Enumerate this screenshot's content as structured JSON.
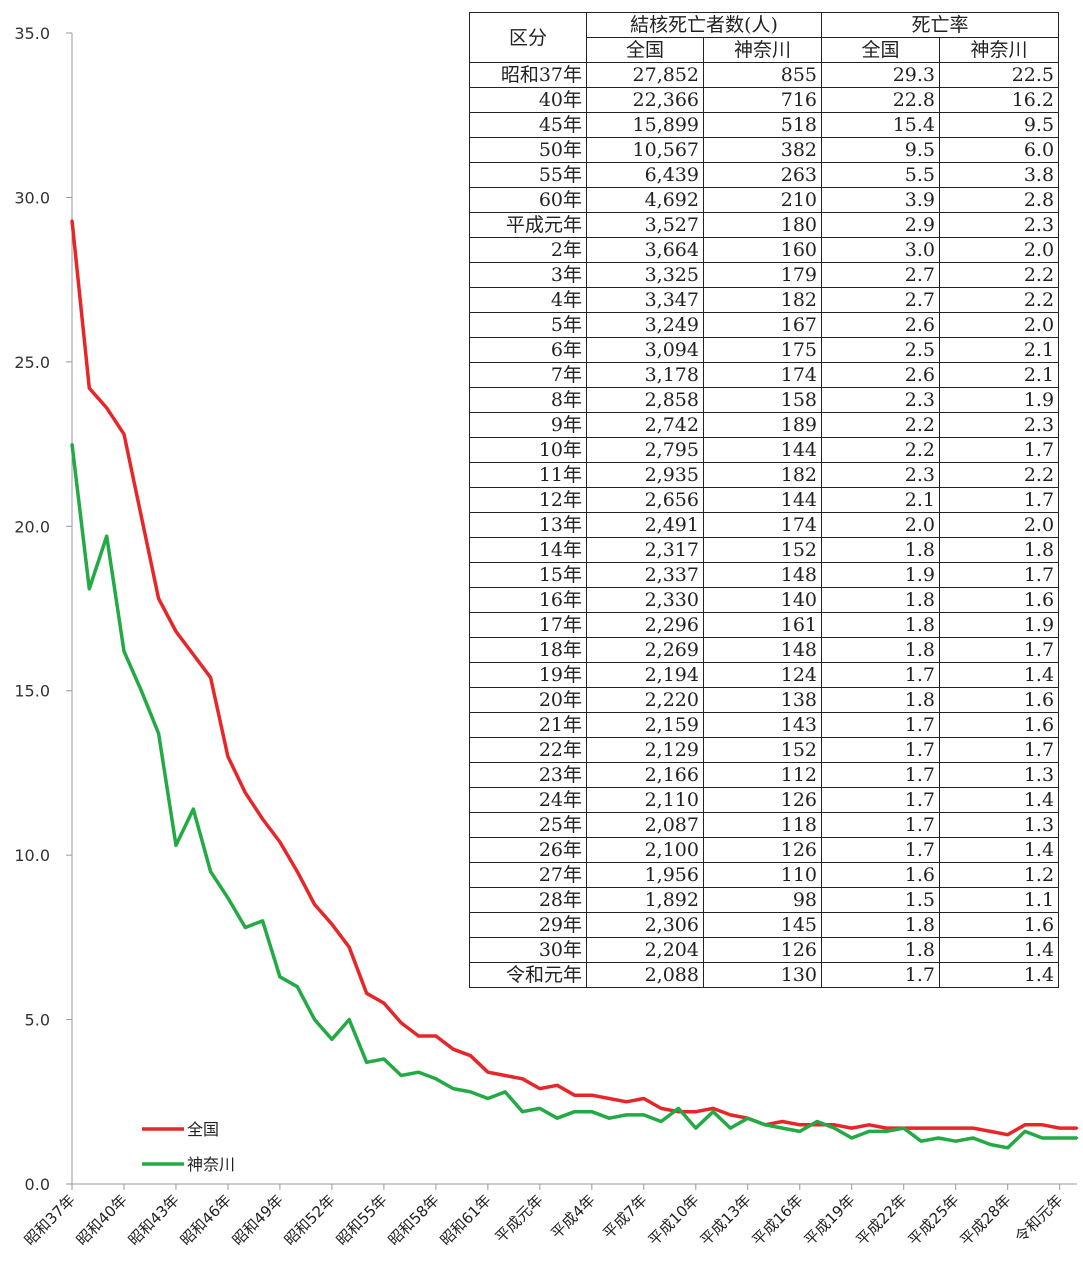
{
  "chart_data": {
    "type": "line",
    "ylim": [
      0,
      35
    ],
    "yticks": [
      "0.0",
      "5.0",
      "10.0",
      "15.0",
      "20.0",
      "25.0",
      "30.0",
      "35.0"
    ],
    "x_labels": [
      "昭和37年",
      "昭和40年",
      "昭和43年",
      "昭和46年",
      "昭和49年",
      "昭和52年",
      "昭和55年",
      "昭和58年",
      "昭和61年",
      "平成元年",
      "平成4年",
      "平成7年",
      "平成10年",
      "平成13年",
      "平成16年",
      "平成19年",
      "平成22年",
      "平成25年",
      "平成28年",
      "令和元年"
    ],
    "x_label_positions": [
      0,
      3,
      6,
      9,
      12,
      15,
      18,
      21,
      24,
      27,
      30,
      33,
      36,
      39,
      42,
      45,
      48,
      51,
      54,
      57
    ],
    "x_count": 59,
    "legend": "bottom-left",
    "series": [
      {
        "name": "全国",
        "color": "#e8262a",
        "values": [
          29.3,
          24.2,
          23.6,
          22.8,
          20.3,
          17.8,
          16.8,
          16.1,
          15.4,
          13.0,
          11.9,
          11.1,
          10.4,
          9.5,
          8.5,
          7.9,
          7.2,
          5.8,
          5.5,
          4.9,
          4.5,
          4.5,
          4.1,
          3.9,
          3.4,
          3.3,
          3.2,
          2.9,
          3.0,
          2.7,
          2.7,
          2.6,
          2.5,
          2.6,
          2.3,
          2.2,
          2.2,
          2.3,
          2.1,
          2.0,
          1.8,
          1.9,
          1.8,
          1.8,
          1.8,
          1.7,
          1.8,
          1.7,
          1.7,
          1.7,
          1.7,
          1.7,
          1.7,
          1.6,
          1.5,
          1.8,
          1.8,
          1.7,
          1.7
        ]
      },
      {
        "name": "神奈川",
        "color": "#22aa44",
        "values": [
          22.5,
          18.1,
          19.7,
          16.2,
          15.0,
          13.7,
          10.3,
          11.4,
          9.5,
          8.7,
          7.8,
          8.0,
          6.3,
          6.0,
          5.0,
          4.4,
          5.0,
          3.7,
          3.8,
          3.3,
          3.4,
          3.2,
          2.9,
          2.8,
          2.6,
          2.8,
          2.2,
          2.3,
          2.0,
          2.2,
          2.2,
          2.0,
          2.1,
          2.1,
          1.9,
          2.3,
          1.7,
          2.2,
          1.7,
          2.0,
          1.8,
          1.7,
          1.6,
          1.9,
          1.7,
          1.4,
          1.6,
          1.6,
          1.7,
          1.3,
          1.4,
          1.3,
          1.4,
          1.2,
          1.1,
          1.6,
          1.4,
          1.4,
          1.4
        ]
      }
    ]
  },
  "table": {
    "header_kubun": "区分",
    "header_deaths": "結核死亡者数(人)",
    "header_rate": "死亡率",
    "sub_headers": [
      "全国",
      "神奈川",
      "全国",
      "神奈川"
    ],
    "rows": [
      [
        "昭和37年",
        "27,852",
        "855",
        "29.3",
        "22.5"
      ],
      [
        "40年",
        "22,366",
        "716",
        "22.8",
        "16.2"
      ],
      [
        "45年",
        "15,899",
        "518",
        "15.4",
        "9.5"
      ],
      [
        "50年",
        "10,567",
        "382",
        "9.5",
        "6.0"
      ],
      [
        "55年",
        "6,439",
        "263",
        "5.5",
        "3.8"
      ],
      [
        "60年",
        "4,692",
        "210",
        "3.9",
        "2.8"
      ],
      [
        "平成元年",
        "3,527",
        "180",
        "2.9",
        "2.3"
      ],
      [
        "2年",
        "3,664",
        "160",
        "3.0",
        "2.0"
      ],
      [
        "3年",
        "3,325",
        "179",
        "2.7",
        "2.2"
      ],
      [
        "4年",
        "3,347",
        "182",
        "2.7",
        "2.2"
      ],
      [
        "5年",
        "3,249",
        "167",
        "2.6",
        "2.0"
      ],
      [
        "6年",
        "3,094",
        "175",
        "2.5",
        "2.1"
      ],
      [
        "7年",
        "3,178",
        "174",
        "2.6",
        "2.1"
      ],
      [
        "8年",
        "2,858",
        "158",
        "2.3",
        "1.9"
      ],
      [
        "9年",
        "2,742",
        "189",
        "2.2",
        "2.3"
      ],
      [
        "10年",
        "2,795",
        "144",
        "2.2",
        "1.7"
      ],
      [
        "11年",
        "2,935",
        "182",
        "2.3",
        "2.2"
      ],
      [
        "12年",
        "2,656",
        "144",
        "2.1",
        "1.7"
      ],
      [
        "13年",
        "2,491",
        "174",
        "2.0",
        "2.0"
      ],
      [
        "14年",
        "2,317",
        "152",
        "1.8",
        "1.8"
      ],
      [
        "15年",
        "2,337",
        "148",
        "1.9",
        "1.7"
      ],
      [
        "16年",
        "2,330",
        "140",
        "1.8",
        "1.6"
      ],
      [
        "17年",
        "2,296",
        "161",
        "1.8",
        "1.9"
      ],
      [
        "18年",
        "2,269",
        "148",
        "1.8",
        "1.7"
      ],
      [
        "19年",
        "2,194",
        "124",
        "1.7",
        "1.4"
      ],
      [
        "20年",
        "2,220",
        "138",
        "1.8",
        "1.6"
      ],
      [
        "21年",
        "2,159",
        "143",
        "1.7",
        "1.6"
      ],
      [
        "22年",
        "2,129",
        "152",
        "1.7",
        "1.7"
      ],
      [
        "23年",
        "2,166",
        "112",
        "1.7",
        "1.3"
      ],
      [
        "24年",
        "2,110",
        "126",
        "1.7",
        "1.4"
      ],
      [
        "25年",
        "2,087",
        "118",
        "1.7",
        "1.3"
      ],
      [
        "26年",
        "2,100",
        "126",
        "1.7",
        "1.4"
      ],
      [
        "27年",
        "1,956",
        "110",
        "1.6",
        "1.2"
      ],
      [
        "28年",
        "1,892",
        "98",
        "1.5",
        "1.1"
      ],
      [
        "29年",
        "2,306",
        "145",
        "1.8",
        "1.6"
      ],
      [
        "30年",
        "2,204",
        "126",
        "1.8",
        "1.4"
      ],
      [
        "令和元年",
        "2,088",
        "130",
        "1.7",
        "1.4"
      ]
    ]
  }
}
